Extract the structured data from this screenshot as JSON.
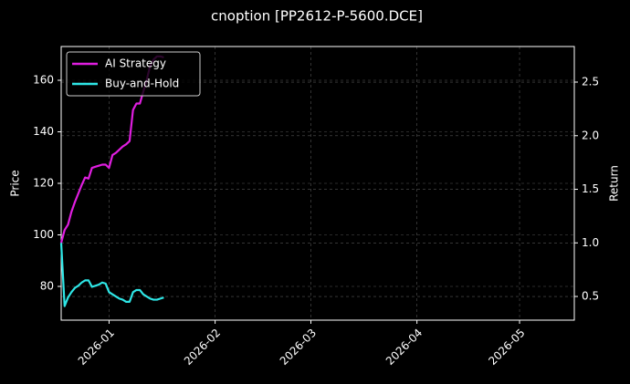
{
  "chart_data": {
    "type": "line",
    "title": "cnoption [PP2612-P-5600.DCE]",
    "ylabel": "Price",
    "y2label": "Return",
    "x": [
      "2025-12-18",
      "2025-12-19",
      "2025-12-20",
      "2025-12-21",
      "2025-12-22",
      "2025-12-23",
      "2025-12-24",
      "2025-12-25",
      "2025-12-26",
      "2025-12-27",
      "2025-12-28",
      "2025-12-29",
      "2025-12-30",
      "2025-12-31",
      "2026-01-01",
      "2026-01-02",
      "2026-01-03",
      "2026-01-04",
      "2026-01-05",
      "2026-01-06",
      "2026-01-07",
      "2026-01-08",
      "2026-01-09",
      "2026-01-10",
      "2026-01-11",
      "2026-01-12",
      "2026-01-13",
      "2026-01-14",
      "2026-01-15",
      "2026-01-16",
      "2026-01-17"
    ],
    "series": [
      {
        "name": "AI Strategy",
        "color": "#e01ee0",
        "axis": "y2",
        "values": [
          1.0,
          1.12,
          1.17,
          1.29,
          1.38,
          1.46,
          1.54,
          1.61,
          1.6,
          1.7,
          1.71,
          1.72,
          1.73,
          1.73,
          1.7,
          1.82,
          1.84,
          1.87,
          1.9,
          1.92,
          1.95,
          2.24,
          2.3,
          2.3,
          2.41,
          2.52,
          2.65,
          2.71,
          2.74,
          2.74,
          2.73
        ]
      },
      {
        "name": "Buy-and-Hold",
        "color": "#2ee6e6",
        "axis": "y2",
        "values": [
          1.0,
          0.41,
          0.49,
          0.54,
          0.58,
          0.6,
          0.63,
          0.65,
          0.65,
          0.59,
          0.6,
          0.61,
          0.63,
          0.62,
          0.54,
          0.52,
          0.5,
          0.48,
          0.47,
          0.45,
          0.45,
          0.54,
          0.56,
          0.56,
          0.52,
          0.5,
          0.48,
          0.47,
          0.47,
          0.48,
          0.49
        ]
      }
    ],
    "xlim": [
      "2025-12-18",
      "2026-05-17"
    ],
    "xticks": [
      "2026-01",
      "2026-02",
      "2026-03",
      "2026-04",
      "2026-05"
    ],
    "ylim": [
      66.9,
      173.1
    ],
    "yticks": [
      80,
      100,
      120,
      140,
      160
    ],
    "y2lim": [
      0.279,
      2.832
    ],
    "y2ticks": [
      {
        "value": 0.5,
        "label": "0.5"
      },
      {
        "value": 1.0,
        "label": "1.0"
      },
      {
        "value": 1.5,
        "label": "1.5"
      },
      {
        "value": 2.0,
        "label": "2.0"
      },
      {
        "value": 2.5,
        "label": "2.5"
      }
    ],
    "grid": true,
    "legend": "upper left"
  }
}
